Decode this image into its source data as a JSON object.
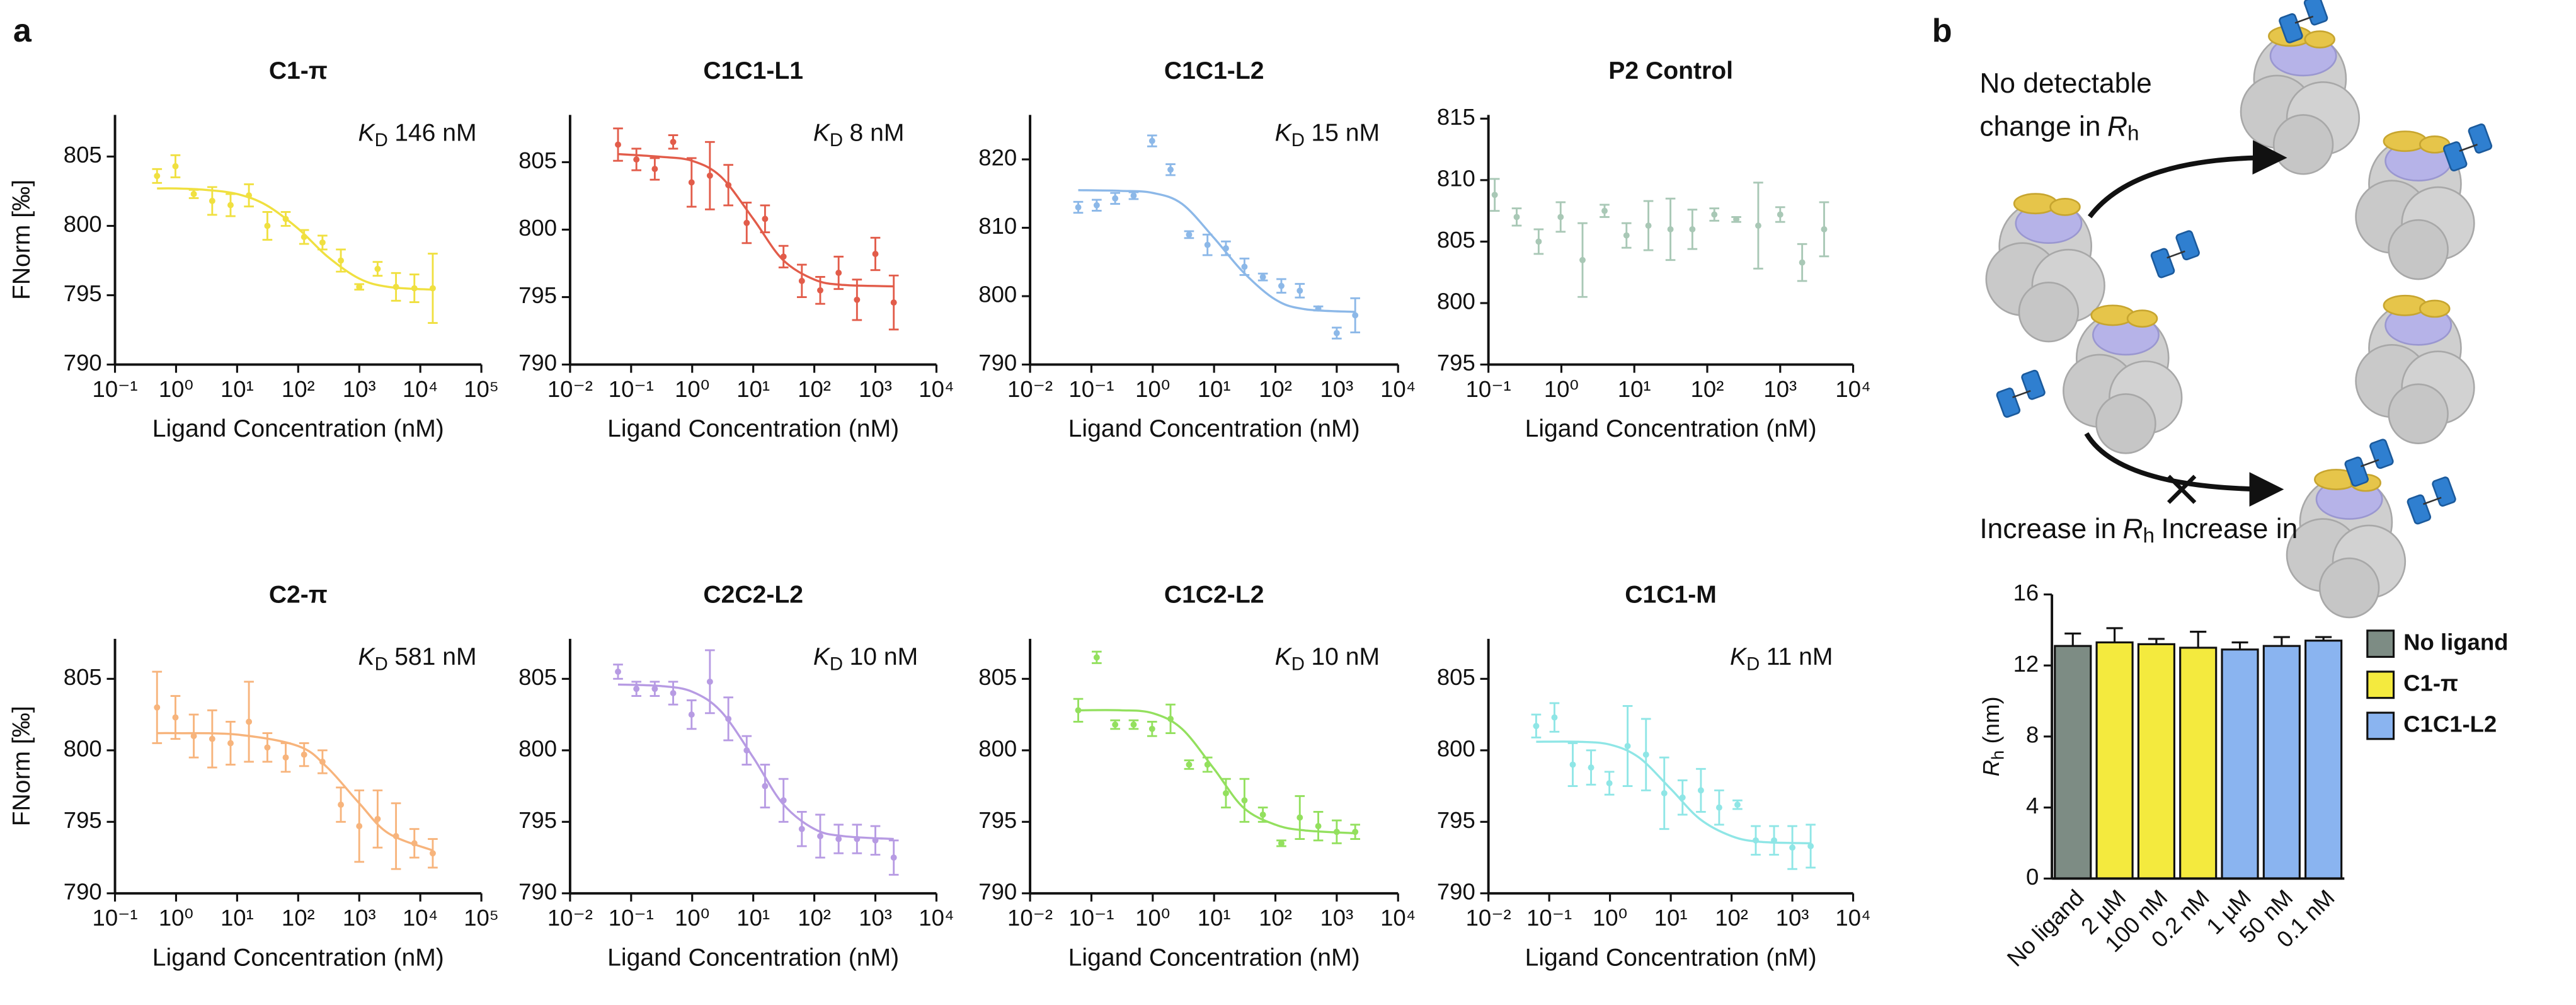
{
  "panels": {
    "a": "a",
    "b": "b"
  },
  "diagram": {
    "top_label": {
      "line1": "No detectable",
      "line2": "change in",
      "symbol": "R",
      "subscript": "h"
    },
    "bottom_label": {
      "text": "Increase in",
      "symbol": "R",
      "subscript": "h"
    }
  },
  "chart_data": [
    {
      "type": "scatter",
      "title": "C1-π",
      "annotation": {
        "symbol": "K",
        "subscript": "D",
        "text": "146 nM"
      },
      "x_label": "Ligand Concentration (nM)",
      "y_label": "FNorm [‰]",
      "color": "#f0e040",
      "log_x": true,
      "xlim": [
        0.1,
        100000
      ],
      "ylim": [
        790,
        808
      ],
      "xticks": [
        {
          "value": 0.1,
          "label": "10⁻¹"
        },
        {
          "value": 1,
          "label": "10⁰"
        },
        {
          "value": 10,
          "label": "10¹"
        },
        {
          "value": 100,
          "label": "10²"
        },
        {
          "value": 1000,
          "label": "10³"
        },
        {
          "value": 10000,
          "label": "10⁴"
        },
        {
          "value": 100000,
          "label": "10⁵"
        }
      ],
      "yticks": [
        790,
        795,
        800,
        805
      ],
      "x": [
        0.488,
        0.977,
        1.95,
        3.91,
        7.81,
        15.6,
        31.3,
        62.5,
        125,
        250,
        500,
        1000,
        2000,
        4000,
        8000,
        16000
      ],
      "values": [
        803.6,
        804.3,
        802.3,
        801.8,
        801.5,
        802.2,
        800,
        800.5,
        799.2,
        798.8,
        797.5,
        795.6,
        796.9,
        795.6,
        795.5,
        795.5
      ],
      "errors": [
        0.5,
        0.8,
        0.3,
        1,
        0.8,
        0.8,
        1,
        0.5,
        0.5,
        0.5,
        0.8,
        0.2,
        0.5,
        1,
        1,
        2.5
      ],
      "fit_x": [
        0.488,
        1,
        3,
        10,
        30,
        100,
        300,
        1000,
        3000,
        16000
      ],
      "fit_values": [
        802.7,
        802.7,
        802.6,
        802.3,
        801.5,
        799.8,
        797.8,
        796.2,
        795.6,
        795.4
      ]
    },
    {
      "type": "scatter",
      "title": "C1C1-L1",
      "annotation": {
        "symbol": "K",
        "subscript": "D",
        "text": "8 nM"
      },
      "x_label": "Ligand Concentration (nM)",
      "color": "#e25c4a",
      "log_x": true,
      "xlim": [
        0.01,
        10000
      ],
      "ylim": [
        790,
        808.5
      ],
      "xticks": [
        {
          "value": 0.01,
          "label": "10⁻²"
        },
        {
          "value": 0.1,
          "label": "10⁻¹"
        },
        {
          "value": 1,
          "label": "10⁰"
        },
        {
          "value": 10,
          "label": "10¹"
        },
        {
          "value": 100,
          "label": "10²"
        },
        {
          "value": 1000,
          "label": "10³"
        },
        {
          "value": 10000,
          "label": "10⁴"
        }
      ],
      "yticks": [
        790,
        795,
        800,
        805
      ],
      "x": [
        0.061,
        0.122,
        0.244,
        0.488,
        0.977,
        1.95,
        3.91,
        7.81,
        15.6,
        31.3,
        62.5,
        125,
        250,
        500,
        1000,
        2000
      ],
      "values": [
        806.3,
        805.2,
        804.5,
        806.5,
        803.5,
        804,
        803.3,
        800.5,
        800.8,
        798,
        796.2,
        795.5,
        796.8,
        794.8,
        798.2,
        794.6
      ],
      "errors": [
        1.2,
        0.8,
        0.8,
        0.5,
        1.8,
        2.5,
        1.5,
        1.5,
        1,
        0.8,
        1.2,
        1,
        1.2,
        1.5,
        1.2,
        2
      ],
      "fit_x": [
        0.061,
        0.3,
        1,
        3,
        10,
        30,
        100,
        300,
        2000
      ],
      "fit_values": [
        805.6,
        805.4,
        805.1,
        803.9,
        800.8,
        797.8,
        796.3,
        795.9,
        795.8
      ]
    },
    {
      "type": "scatter",
      "title": "C1C1-L2",
      "annotation": {
        "symbol": "K",
        "subscript": "D",
        "text": "15 nM"
      },
      "x_label": "Ligand Concentration (nM)",
      "color": "#8cb8e8",
      "log_x": true,
      "xlim": [
        0.01,
        10000
      ],
      "ylim": [
        790,
        826.5
      ],
      "xticks": [
        {
          "value": 0.01,
          "label": "10⁻²"
        },
        {
          "value": 0.1,
          "label": "10⁻¹"
        },
        {
          "value": 1,
          "label": "10⁰"
        },
        {
          "value": 10,
          "label": "10¹"
        },
        {
          "value": 100,
          "label": "10²"
        },
        {
          "value": 1000,
          "label": "10³"
        },
        {
          "value": 10000,
          "label": "10⁴"
        }
      ],
      "yticks": [
        790,
        800,
        810,
        820
      ],
      "x": [
        0.061,
        0.122,
        0.244,
        0.488,
        0.977,
        1.95,
        3.91,
        7.81,
        15.6,
        31.3,
        62.5,
        125,
        250,
        500,
        1000,
        2000
      ],
      "values": [
        813,
        813.3,
        814.3,
        814.7,
        822.7,
        818.5,
        809,
        807.5,
        807,
        804.3,
        802.8,
        801.5,
        800.8,
        798.2,
        794.6,
        797.2
      ],
      "errors": [
        0.8,
        0.8,
        0.8,
        0.5,
        0.8,
        0.8,
        0.5,
        1.5,
        1,
        1.2,
        0.5,
        1,
        1,
        0.3,
        0.8,
        2.5
      ],
      "fit_x": [
        0.061,
        0.3,
        1,
        3,
        10,
        30,
        100,
        300,
        2000
      ],
      "fit_values": [
        815.5,
        815.4,
        815.1,
        813.5,
        808.5,
        803.5,
        799.5,
        798.1,
        797.7
      ]
    },
    {
      "type": "scatter",
      "title": "P2 Control",
      "x_label": "Ligand Concentration (nM)",
      "color": "#a9c8b6",
      "log_x": true,
      "xlim": [
        0.1,
        10000
      ],
      "ylim": [
        795,
        815.3
      ],
      "xticks": [
        {
          "value": 0.1,
          "label": "10⁻¹"
        },
        {
          "value": 1,
          "label": "10⁰"
        },
        {
          "value": 10,
          "label": "10¹"
        },
        {
          "value": 100,
          "label": "10²"
        },
        {
          "value": 1000,
          "label": "10³"
        },
        {
          "value": 10000,
          "label": "10⁴"
        }
      ],
      "yticks": [
        795,
        800,
        805,
        810,
        815
      ],
      "x": [
        0.122,
        0.244,
        0.488,
        0.977,
        1.95,
        3.91,
        7.81,
        15.6,
        31.3,
        62.5,
        125,
        250,
        500,
        1000,
        2000,
        4000
      ],
      "values": [
        808.8,
        807,
        805,
        807,
        803.5,
        807.5,
        805.5,
        806.3,
        806,
        806,
        807.2,
        806.8,
        806.3,
        807.2,
        803.3,
        806
      ],
      "errors": [
        1.3,
        0.7,
        1,
        1.2,
        3,
        0.5,
        1,
        2,
        2.5,
        1.6,
        0.5,
        0.2,
        3.5,
        0.6,
        1.5,
        2.2
      ]
    },
    {
      "type": "scatter",
      "title": "C2-π",
      "annotation": {
        "symbol": "K",
        "subscript": "D",
        "text": "581 nM"
      },
      "x_label": "Ligand Concentration (nM)",
      "y_label": "FNorm [‰]",
      "color": "#f7b47c",
      "log_x": true,
      "xlim": [
        0.1,
        100000
      ],
      "ylim": [
        790,
        807.8
      ],
      "xticks": [
        {
          "value": 0.1,
          "label": "10⁻¹"
        },
        {
          "value": 1,
          "label": "10⁰"
        },
        {
          "value": 10,
          "label": "10¹"
        },
        {
          "value": 100,
          "label": "10²"
        },
        {
          "value": 1000,
          "label": "10³"
        },
        {
          "value": 10000,
          "label": "10⁴"
        },
        {
          "value": 100000,
          "label": "10⁵"
        }
      ],
      "yticks": [
        790,
        795,
        800,
        805
      ],
      "x": [
        0.488,
        0.977,
        1.95,
        3.91,
        7.81,
        15.6,
        31.3,
        62.5,
        125,
        250,
        500,
        1000,
        2000,
        4000,
        8000,
        16000
      ],
      "values": [
        803,
        802.3,
        801,
        800.8,
        800.5,
        802,
        800.2,
        799.5,
        799.7,
        799.2,
        796.2,
        794.7,
        795.2,
        794,
        793.5,
        792.8
      ],
      "errors": [
        2.5,
        1.5,
        1.5,
        2,
        1.5,
        2.8,
        1,
        1,
        0.8,
        0.8,
        1.2,
        2.5,
        2,
        2.3,
        1,
        1
      ],
      "fit_x": [
        0.488,
        1,
        10,
        100,
        300,
        1000,
        3000,
        16000
      ],
      "fit_values": [
        801.2,
        801.2,
        801.1,
        800.3,
        798.8,
        796.3,
        794.2,
        793
      ]
    },
    {
      "type": "scatter",
      "title": "C2C2-L2",
      "annotation": {
        "symbol": "K",
        "subscript": "D",
        "text": "10 nM"
      },
      "x_label": "Ligand Concentration (nM)",
      "color": "#b79be3",
      "log_x": true,
      "xlim": [
        0.01,
        10000
      ],
      "ylim": [
        790,
        807.8
      ],
      "xticks": [
        {
          "value": 0.01,
          "label": "10⁻²"
        },
        {
          "value": 0.1,
          "label": "10⁻¹"
        },
        {
          "value": 1,
          "label": "10⁰"
        },
        {
          "value": 10,
          "label": "10¹"
        },
        {
          "value": 100,
          "label": "10²"
        },
        {
          "value": 1000,
          "label": "10³"
        },
        {
          "value": 10000,
          "label": "10⁴"
        }
      ],
      "yticks": [
        790,
        795,
        800,
        805
      ],
      "x": [
        0.061,
        0.122,
        0.244,
        0.488,
        0.977,
        1.95,
        3.91,
        7.81,
        15.6,
        31.3,
        62.5,
        125,
        250,
        500,
        1000,
        2000
      ],
      "values": [
        805.5,
        804.3,
        804.3,
        804,
        802.5,
        804.8,
        802.2,
        800,
        797.5,
        796.5,
        794.5,
        794,
        793.8,
        793.8,
        793.7,
        792.5
      ],
      "errors": [
        0.5,
        0.5,
        0.5,
        0.8,
        1,
        2.2,
        1.5,
        1,
        1.5,
        1.5,
        1.2,
        1.5,
        1,
        1,
        1,
        1.2
      ],
      "fit_x": [
        0.061,
        0.3,
        1,
        3,
        10,
        30,
        100,
        300,
        2000
      ],
      "fit_values": [
        804.6,
        804.5,
        804.1,
        802.7,
        799.5,
        796.3,
        794.5,
        794,
        793.8
      ]
    },
    {
      "type": "scatter",
      "title": "C1C2-L2",
      "annotation": {
        "symbol": "K",
        "subscript": "D",
        "text": "10 nM"
      },
      "x_label": "Ligand Concentration (nM)",
      "color": "#93e05e",
      "log_x": true,
      "xlim": [
        0.01,
        10000
      ],
      "ylim": [
        790,
        807.8
      ],
      "xticks": [
        {
          "value": 0.01,
          "label": "10⁻²"
        },
        {
          "value": 0.1,
          "label": "10⁻¹"
        },
        {
          "value": 1,
          "label": "10⁰"
        },
        {
          "value": 10,
          "label": "10¹"
        },
        {
          "value": 100,
          "label": "10²"
        },
        {
          "value": 1000,
          "label": "10³"
        },
        {
          "value": 10000,
          "label": "10⁴"
        }
      ],
      "yticks": [
        790,
        795,
        800,
        805
      ],
      "x": [
        0.061,
        0.122,
        0.244,
        0.488,
        0.977,
        1.95,
        3.91,
        7.81,
        15.6,
        31.3,
        62.5,
        125,
        250,
        500,
        1000,
        2000
      ],
      "values": [
        802.8,
        806.5,
        801.8,
        801.8,
        801.5,
        802.2,
        799,
        799,
        797,
        796.5,
        795.5,
        793.5,
        795.3,
        794.7,
        794.3,
        794.3
      ],
      "errors": [
        0.8,
        0.4,
        0.3,
        0.3,
        0.5,
        1,
        0.3,
        0.5,
        1,
        1.5,
        0.5,
        0.2,
        1.5,
        1,
        0.8,
        0.5
      ],
      "fit_x": [
        0.061,
        0.3,
        1,
        3,
        10,
        30,
        100,
        300,
        2000
      ],
      "fit_values": [
        802.8,
        802.8,
        802.6,
        801.5,
        798.7,
        796,
        794.8,
        794.4,
        794.2
      ]
    },
    {
      "type": "scatter",
      "title": "C1C1-M",
      "annotation": {
        "symbol": "K",
        "subscript": "D",
        "text": "11 nM"
      },
      "x_label": "Ligand Concentration (nM)",
      "color": "#8fe6e6",
      "log_x": true,
      "xlim": [
        0.01,
        10000
      ],
      "ylim": [
        790,
        807.8
      ],
      "xticks": [
        {
          "value": 0.01,
          "label": "10⁻²"
        },
        {
          "value": 0.1,
          "label": "10⁻¹"
        },
        {
          "value": 1,
          "label": "10⁰"
        },
        {
          "value": 10,
          "label": "10¹"
        },
        {
          "value": 100,
          "label": "10²"
        },
        {
          "value": 1000,
          "label": "10³"
        },
        {
          "value": 10000,
          "label": "10⁴"
        }
      ],
      "yticks": [
        790,
        795,
        800,
        805
      ],
      "x": [
        0.061,
        0.122,
        0.244,
        0.488,
        0.977,
        1.95,
        3.91,
        7.81,
        15.6,
        31.3,
        62.5,
        125,
        250,
        500,
        1000,
        2000
      ],
      "values": [
        801.7,
        802.3,
        799,
        798.8,
        797.7,
        800.3,
        799.7,
        797,
        796.7,
        797.2,
        796,
        796.2,
        793.7,
        793.7,
        793.2,
        793.3
      ],
      "errors": [
        0.8,
        1,
        1.5,
        1.2,
        0.8,
        2.8,
        2.5,
        2.5,
        1.2,
        1.5,
        1.2,
        0.3,
        1,
        1,
        1.5,
        1.5
      ],
      "fit_x": [
        0.061,
        0.3,
        1,
        3,
        10,
        30,
        100,
        300,
        2000
      ],
      "fit_values": [
        800.6,
        800.6,
        800.4,
        799.5,
        797.3,
        795.2,
        794,
        793.6,
        793.5
      ]
    },
    {
      "type": "bar",
      "y_label": {
        "symbol": "R",
        "subscript": "h",
        "text": "(nm)"
      },
      "categories": [
        "No ligand",
        "2 µM",
        "100 nM",
        "0.2 nM",
        "1 µM",
        "50 nM",
        "0.1 nM"
      ],
      "ylim": [
        0,
        16
      ],
      "yticks": [
        0,
        4,
        8,
        12,
        16
      ],
      "legend": "right",
      "series": [
        {
          "name": "No ligand",
          "color": "#7d8c84",
          "values": [
            13.1,
            null,
            null,
            null,
            null,
            null,
            null
          ],
          "errors": [
            0.7,
            null,
            null,
            null,
            null,
            null,
            null
          ]
        },
        {
          "name": "C1-π",
          "color": "#f4ea3e",
          "values": [
            null,
            13.3,
            13.2,
            13.0,
            null,
            null,
            null
          ],
          "errors": [
            null,
            0.8,
            0.3,
            0.9,
            null,
            null,
            null
          ]
        },
        {
          "name": "C1C1-L2",
          "color": "#8ab4f0",
          "values": [
            null,
            null,
            null,
            null,
            12.9,
            13.1,
            13.4
          ],
          "errors": [
            null,
            null,
            null,
            null,
            0.4,
            0.5,
            0.2
          ]
        }
      ]
    }
  ]
}
